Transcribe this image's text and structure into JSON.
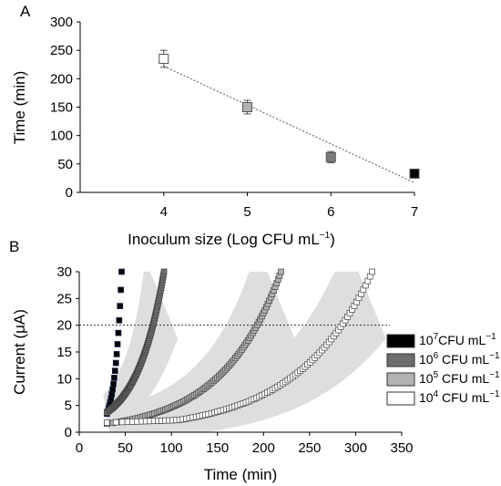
{
  "chart_data": [
    {
      "panel": "A",
      "type": "scatter",
      "xlabel": "Inoculum size (Log CFU mL",
      "xlabel_sup": "−1",
      "xlabel_tail": ")",
      "ylabel": "Time (min)",
      "xlim": [
        3,
        7
      ],
      "ylim": [
        0,
        300
      ],
      "x_ticks": [
        4,
        5,
        6,
        7
      ],
      "y_ticks": [
        0,
        50,
        100,
        150,
        200,
        250,
        300
      ],
      "x": [
        4,
        5,
        6,
        7
      ],
      "y": [
        235,
        150,
        62,
        33
      ],
      "err": [
        15,
        12,
        10,
        4
      ],
      "point_colors": [
        "#ffffff",
        "#b3b3b3",
        "#7a7a7a",
        "#000000"
      ],
      "trendline": {
        "style": "dotted",
        "x": [
          4,
          7
        ],
        "y": [
          222,
          17
        ]
      },
      "grid": false
    },
    {
      "panel": "B",
      "type": "scatter",
      "xlabel": "Time (min)",
      "ylabel": "Current (μA)",
      "xlim": [
        0,
        350
      ],
      "ylim": [
        0,
        30
      ],
      "x_ticks": [
        0,
        50,
        100,
        150,
        200,
        250,
        300,
        350
      ],
      "y_ticks": [
        0,
        5,
        10,
        15,
        20,
        25,
        30
      ],
      "threshold": {
        "y": 20,
        "style": "dotted"
      },
      "legend_position": "right",
      "grid": false,
      "series": [
        {
          "name": "10",
          "sup": "7",
          "unit": "CFU mL",
          "unit_sup": "−1",
          "color": "#000000",
          "t0": 30,
          "t20": 43,
          "t30": 46,
          "onset": 32,
          "base": 1.0
        },
        {
          "name": "10",
          "sup": "6",
          "unit": " CFU mL",
          "unit_sup": "−1",
          "color": "#6e6e6e",
          "t0": 30,
          "t20": 80,
          "t30": 92,
          "onset": 35,
          "base": 0.8
        },
        {
          "name": "10",
          "sup": "5",
          "unit": " CFU mL",
          "unit_sup": "−1",
          "color": "#b3b3b3",
          "t0": 30,
          "t20": 193,
          "t30": 219,
          "onset": 45,
          "base": 0.8
        },
        {
          "name": "10",
          "sup": "4",
          "unit": " CFU mL",
          "unit_sup": "−1",
          "color": "#ffffff",
          "t0": 30,
          "t20": 285,
          "t30": 318,
          "onset": 180,
          "base": 1.8
        }
      ]
    }
  ],
  "panel_labels": [
    "A",
    "B"
  ]
}
